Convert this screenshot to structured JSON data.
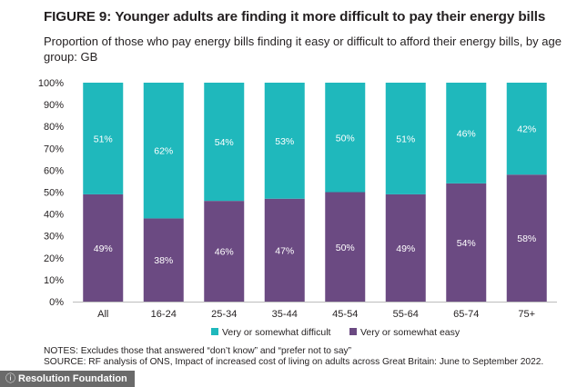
{
  "header": {
    "figure_label": "FIGURE 9:",
    "title": "Younger adults are finding it more difficult to pay their energy bills",
    "subtitle": "Proportion of those who pay energy bills finding it easy or difficult to afford their energy bills, by age group: GB"
  },
  "chart_data": {
    "type": "bar",
    "stacked": true,
    "categories": [
      "All",
      "16-24",
      "25-34",
      "35-44",
      "45-54",
      "55-64",
      "65-74",
      "75+"
    ],
    "series": [
      {
        "name": "Very or somewhat easy",
        "color": "#6b4a82",
        "values": [
          49,
          38,
          46,
          47,
          50,
          49,
          54,
          58
        ],
        "labels": [
          "49%",
          "38%",
          "46%",
          "47%",
          "50%",
          "49%",
          "54%",
          "58%"
        ]
      },
      {
        "name": "Very or somewhat difficult",
        "color": "#1fb8bc",
        "values": [
          51,
          62,
          54,
          53,
          50,
          51,
          46,
          42
        ],
        "labels": [
          "51%",
          "62%",
          "54%",
          "53%",
          "50%",
          "51%",
          "46%",
          "42%"
        ]
      }
    ],
    "legend_order": [
      "Very or somewhat difficult",
      "Very or somewhat easy"
    ],
    "y_ticks": [
      "0%",
      "10%",
      "20%",
      "30%",
      "40%",
      "50%",
      "60%",
      "70%",
      "80%",
      "90%",
      "100%"
    ],
    "ylim": [
      0,
      100
    ],
    "grid": false,
    "legend_position": "bottom"
  },
  "notes": {
    "line1": "NOTES: Excludes those that answered “don’t know” and “prefer not to say”",
    "line2": "SOURCE: RF analysis of ONS, Impact of increased cost of living on adults across Great Britain: June to September 2022."
  },
  "watermark": {
    "icon": "info-icon",
    "text": "Resolution Foundation"
  }
}
